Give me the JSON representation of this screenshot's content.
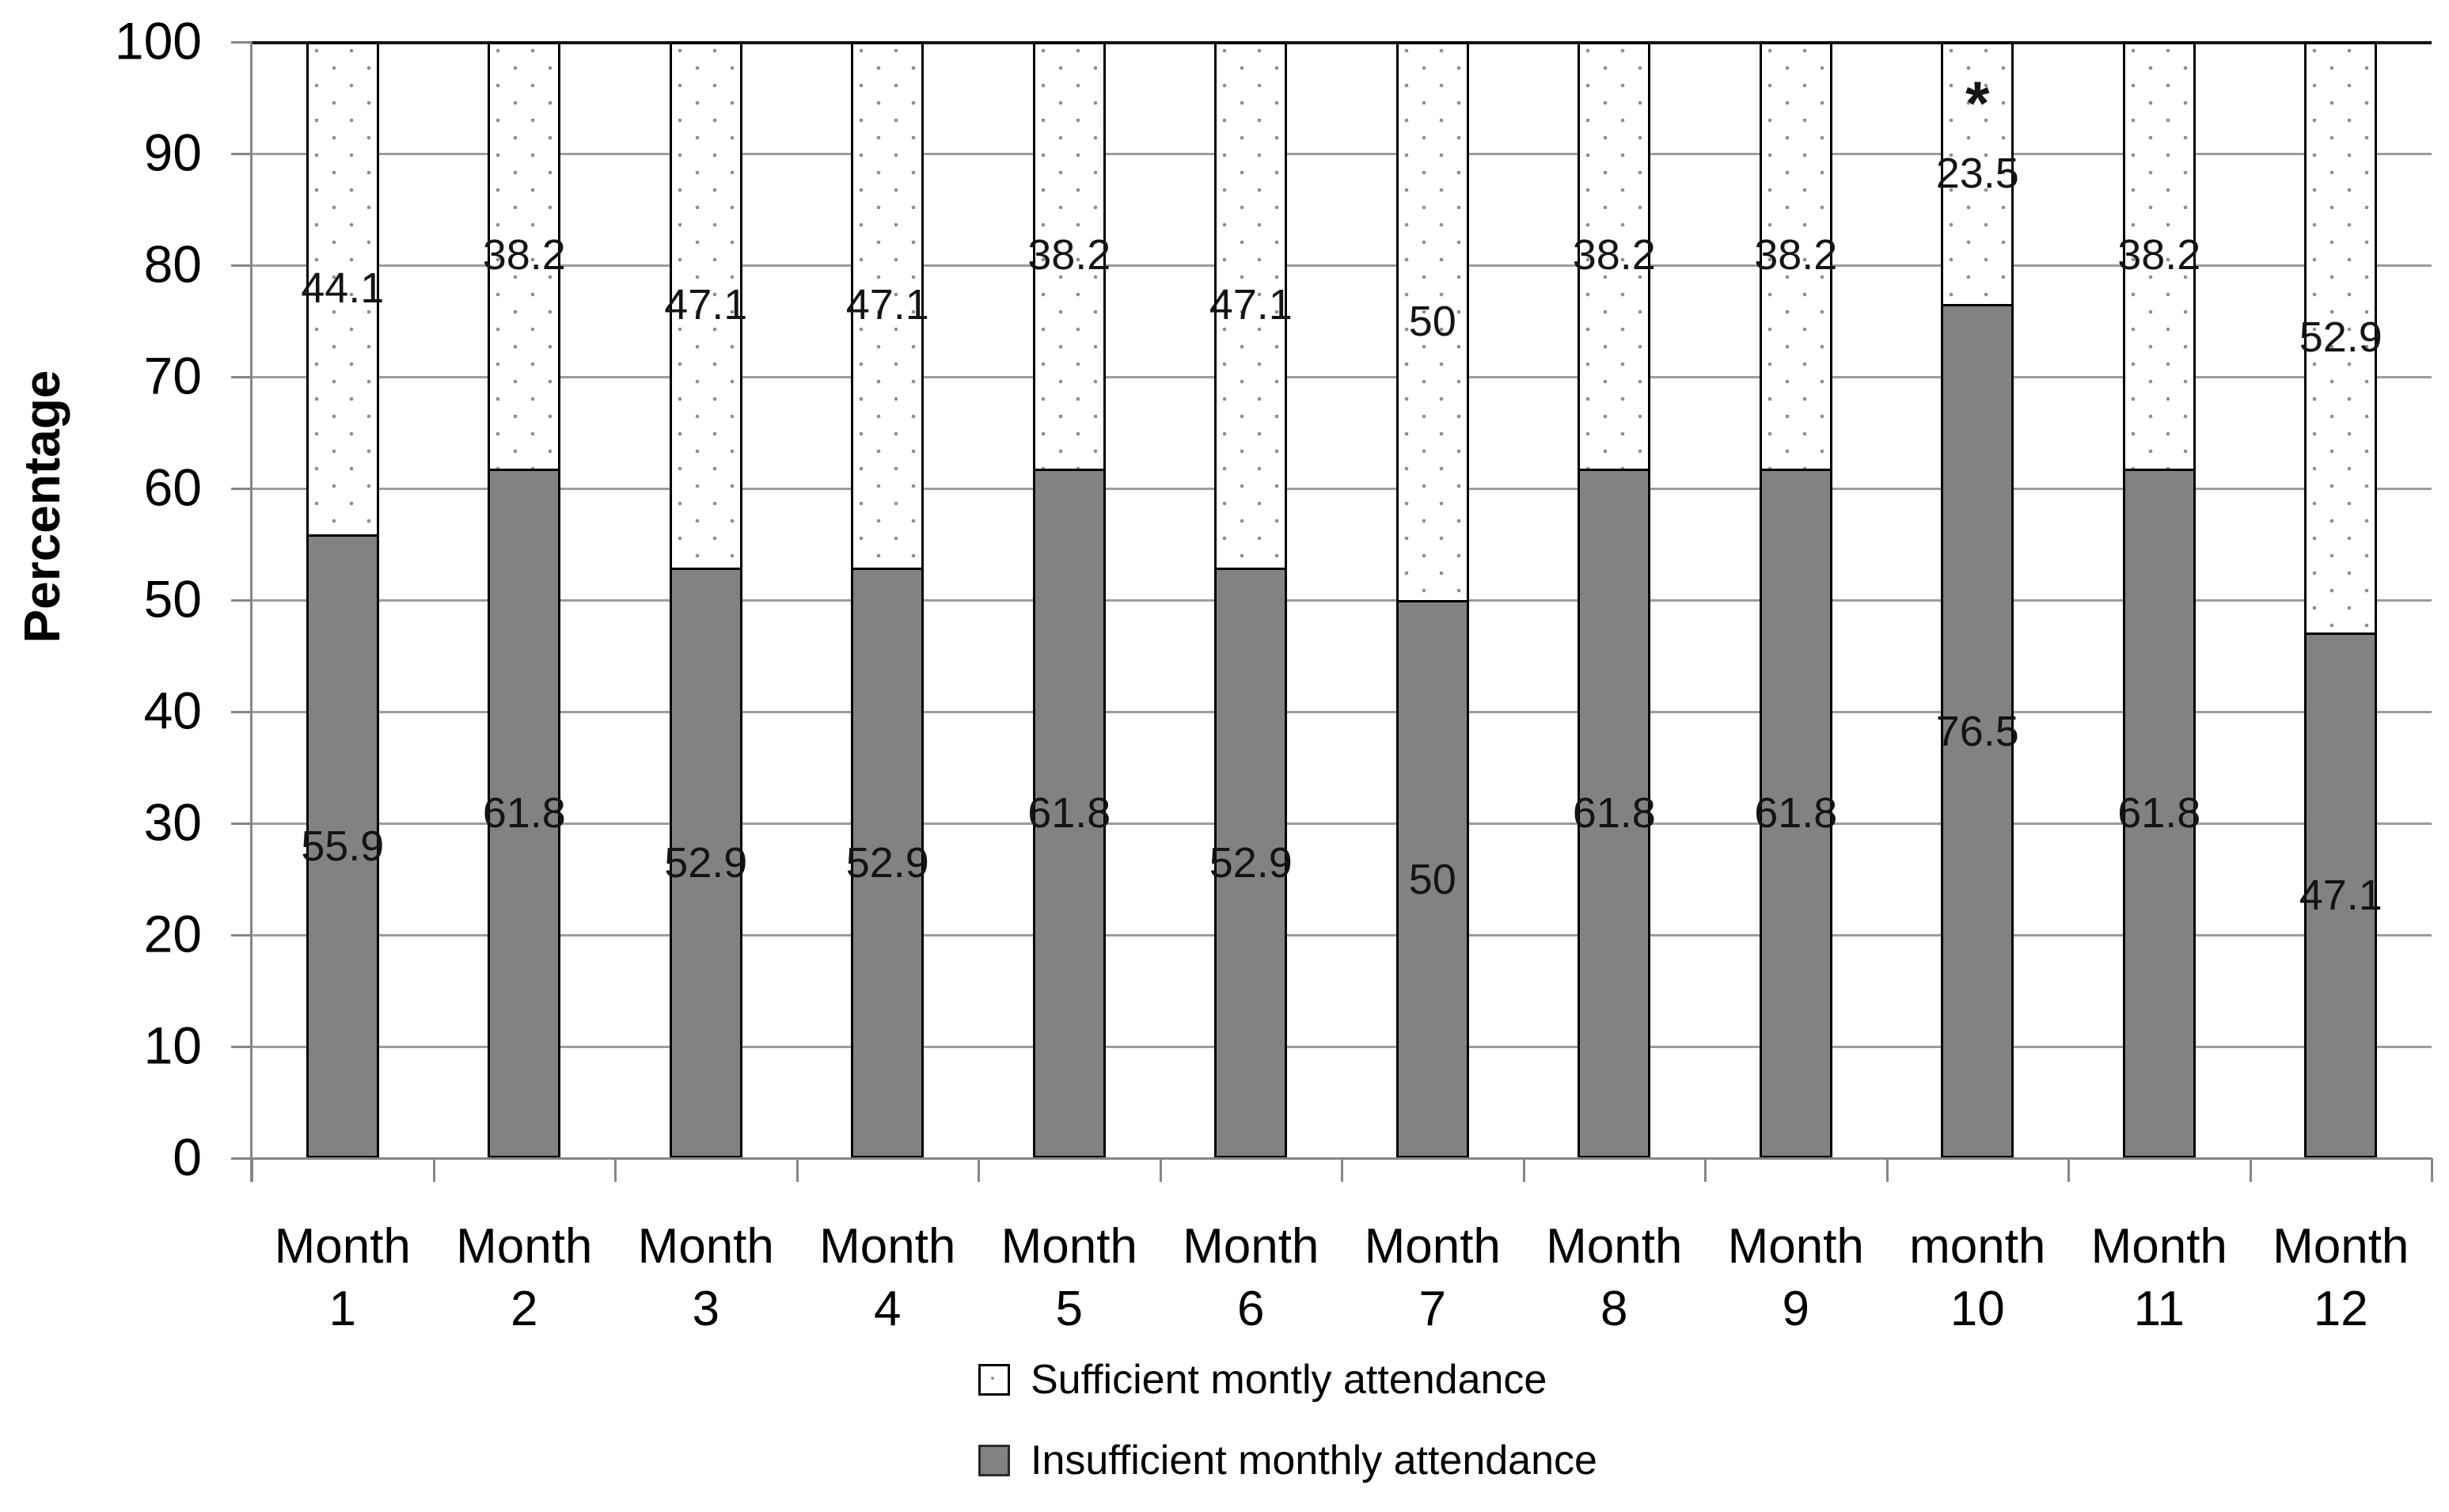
{
  "chart_data": {
    "type": "bar",
    "stacked": true,
    "orientation": "vertical",
    "title": "",
    "ylabel": "Percentage",
    "xlabel": "",
    "ylim": [
      0,
      100
    ],
    "yticks": [
      0,
      10,
      20,
      30,
      40,
      50,
      60,
      70,
      80,
      90,
      100
    ],
    "grid": "horizontal",
    "legend_position": "bottom",
    "categories": [
      "Month 1",
      "Month 2",
      "Month 3",
      "Month 4",
      "Month 5",
      "Month 6",
      "Month 7",
      "Month 8",
      "Month 9",
      "month 10",
      "Month 11",
      "Month 12"
    ],
    "series": [
      {
        "name": "Sufficient montly attendance",
        "stack_position": "top",
        "fill": "dotted-white",
        "color": "#ffffff",
        "values": [
          44.1,
          38.2,
          47.1,
          47.1,
          38.2,
          47.1,
          50,
          38.2,
          38.2,
          23.5,
          38.2,
          52.9
        ]
      },
      {
        "name": "Insufficient monthly attendance",
        "stack_position": "bottom",
        "fill": "solid",
        "color": "#828282",
        "values": [
          55.9,
          61.8,
          52.9,
          52.9,
          61.8,
          52.9,
          50,
          61.8,
          61.8,
          76.5,
          61.8,
          47.1
        ]
      }
    ],
    "data_labels": "centered-in-segment",
    "annotations": [
      {
        "category": "month 10",
        "text": "*",
        "y_value": 95
      }
    ]
  },
  "colors": {
    "bar_gray": "#828282",
    "bar_border": "#000000",
    "pattern_dot": "#8f8f8f",
    "gridline": "#9c9c9c",
    "top_border": "#161616",
    "axis_line": "#868686",
    "text": "#000000"
  }
}
